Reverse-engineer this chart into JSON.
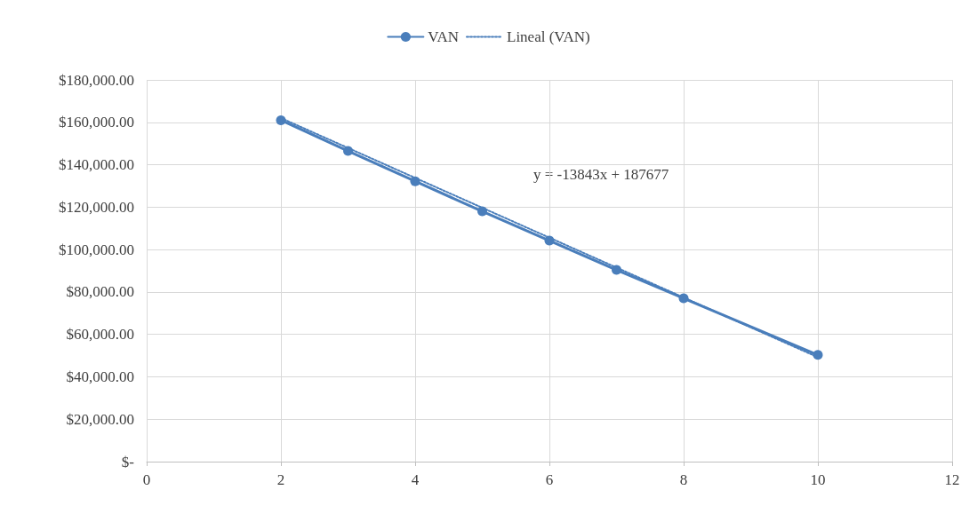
{
  "chart_data": {
    "type": "line",
    "series": [
      {
        "name": "VAN",
        "color": "#4a7ebb",
        "x": [
          2,
          3,
          4,
          5,
          6,
          7,
          8,
          10
        ],
        "values": [
          161000,
          146500,
          132200,
          118000,
          104200,
          90400,
          77000,
          50300
        ],
        "marker": "circle",
        "line_style": "solid"
      },
      {
        "name": "Lineal (VAN)",
        "color": "#4a7ebb",
        "x": [
          2,
          10
        ],
        "values": [
          162000,
          49200
        ],
        "marker": "none",
        "line_style": "dotted"
      }
    ],
    "xlim": [
      0,
      12
    ],
    "xticks": [
      0,
      2,
      4,
      6,
      8,
      10,
      12
    ],
    "ylim": [
      0,
      180000
    ],
    "yticks": [
      {
        "value": 0,
        "label": "$-"
      },
      {
        "value": 20000,
        "label": "$20,000.00"
      },
      {
        "value": 40000,
        "label": "$40,000.00"
      },
      {
        "value": 60000,
        "label": "$60,000.00"
      },
      {
        "value": 80000,
        "label": "$80,000.00"
      },
      {
        "value": 100000,
        "label": "$100,000.00"
      },
      {
        "value": 120000,
        "label": "$120,000.00"
      },
      {
        "value": 140000,
        "label": "$140,000.00"
      },
      {
        "value": 160000,
        "label": "$160,000.00"
      },
      {
        "value": 180000,
        "label": "$180,000.00"
      }
    ],
    "annotations": [
      "y = -13843x + 187677"
    ],
    "grid": true,
    "legend": "top"
  }
}
